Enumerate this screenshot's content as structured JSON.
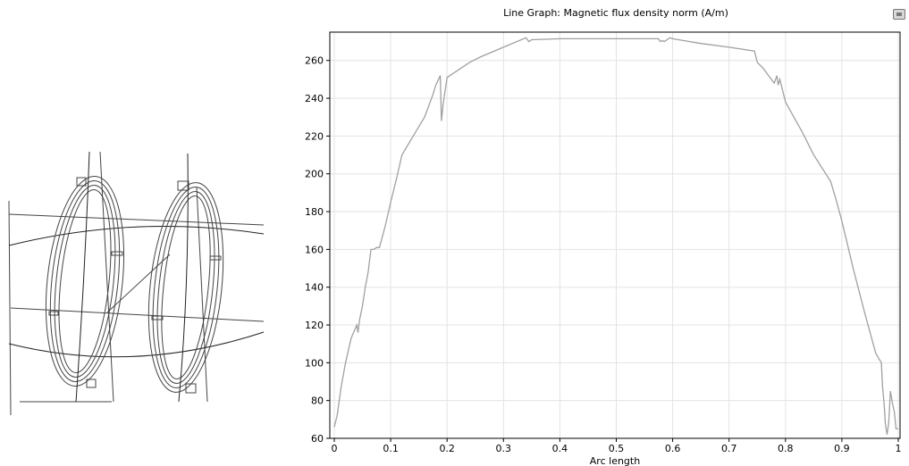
{
  "chart_data": {
    "type": "line",
    "title": "Line Graph: Magnetic flux density norm (A/m)",
    "xlabel": "Arc length",
    "ylabel": "",
    "xlim": [
      0,
      1
    ],
    "ylim": [
      60,
      275
    ],
    "xticks": [
      0,
      0.1,
      0.2,
      0.3,
      0.4,
      0.5,
      0.6,
      0.7,
      0.8,
      0.9,
      1
    ],
    "xtick_labels": [
      "0",
      "0.1",
      "0.2",
      "0.3",
      "0.4",
      "0.5",
      "0.6",
      "0.7",
      "0.8",
      "0.9",
      "1"
    ],
    "yticks": [
      60,
      80,
      100,
      120,
      140,
      160,
      180,
      200,
      220,
      240,
      260
    ],
    "ytick_labels": [
      "60",
      "80",
      "100",
      "120",
      "140",
      "160",
      "180",
      "200",
      "220",
      "240",
      "260"
    ],
    "grid": true,
    "line_color": "#a0a0a0",
    "series": [
      {
        "x": [
          0,
          0.005,
          0.012,
          0.02,
          0.03,
          0.04,
          0.042,
          0.045,
          0.05,
          0.055,
          0.06,
          0.065,
          0.07,
          0.075,
          0.08,
          0.09,
          0.1,
          0.11,
          0.12,
          0.13,
          0.14,
          0.15,
          0.16,
          0.17,
          0.175,
          0.18,
          0.188,
          0.19,
          0.193,
          0.2,
          0.22,
          0.24,
          0.26,
          0.3,
          0.34,
          0.345,
          0.35,
          0.4,
          0.45,
          0.5,
          0.55,
          0.575,
          0.578,
          0.582,
          0.585,
          0.59,
          0.595,
          0.6,
          0.65,
          0.7,
          0.745,
          0.75,
          0.76,
          0.77,
          0.78,
          0.785,
          0.787,
          0.79,
          0.8,
          0.83,
          0.85,
          0.88,
          0.89,
          0.9,
          0.92,
          0.94,
          0.96,
          0.97,
          0.972,
          0.975,
          0.977,
          0.98,
          0.983,
          0.986,
          0.99,
          0.993,
          0.996,
          1.0
        ],
        "y": [
          66,
          72,
          87,
          100,
          113,
          120,
          116,
          123,
          130,
          140,
          148,
          160,
          160,
          161,
          161,
          172,
          185,
          197,
          210,
          215,
          220,
          225,
          230,
          238,
          242,
          247,
          252,
          228,
          237,
          251,
          255,
          259,
          262,
          267,
          272,
          270,
          271,
          271.5,
          271.5,
          271.5,
          271.5,
          271.5,
          270,
          270.5,
          270,
          271,
          272,
          271.5,
          269,
          267,
          265,
          259,
          256,
          252,
          248,
          252,
          247,
          250,
          238,
          222,
          210,
          196,
          186,
          175,
          150,
          127,
          105,
          100,
          88,
          78,
          68,
          62,
          68,
          85,
          78,
          74,
          65,
          65
        ]
      }
    ]
  }
}
